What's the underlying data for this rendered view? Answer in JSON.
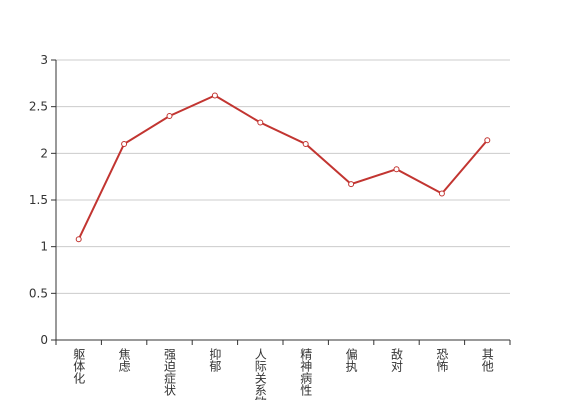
{
  "chart_data": {
    "type": "line",
    "categories": [
      "躯体化",
      "焦虑",
      "强迫症状",
      "抑郁",
      "人际关系敏感",
      "精神病性",
      "偏执",
      "敌对",
      "恐怖",
      "其他"
    ],
    "series": [
      {
        "color": "#c23531",
        "values": [
          1.08,
          2.1,
          2.4,
          2.62,
          2.33,
          2.1,
          1.67,
          1.83,
          1.57,
          2.14
        ]
      }
    ],
    "ylim": [
      0,
      3
    ],
    "yticks": [
      0,
      0.5,
      1,
      1.5,
      2,
      2.5,
      3
    ],
    "grid": true
  }
}
